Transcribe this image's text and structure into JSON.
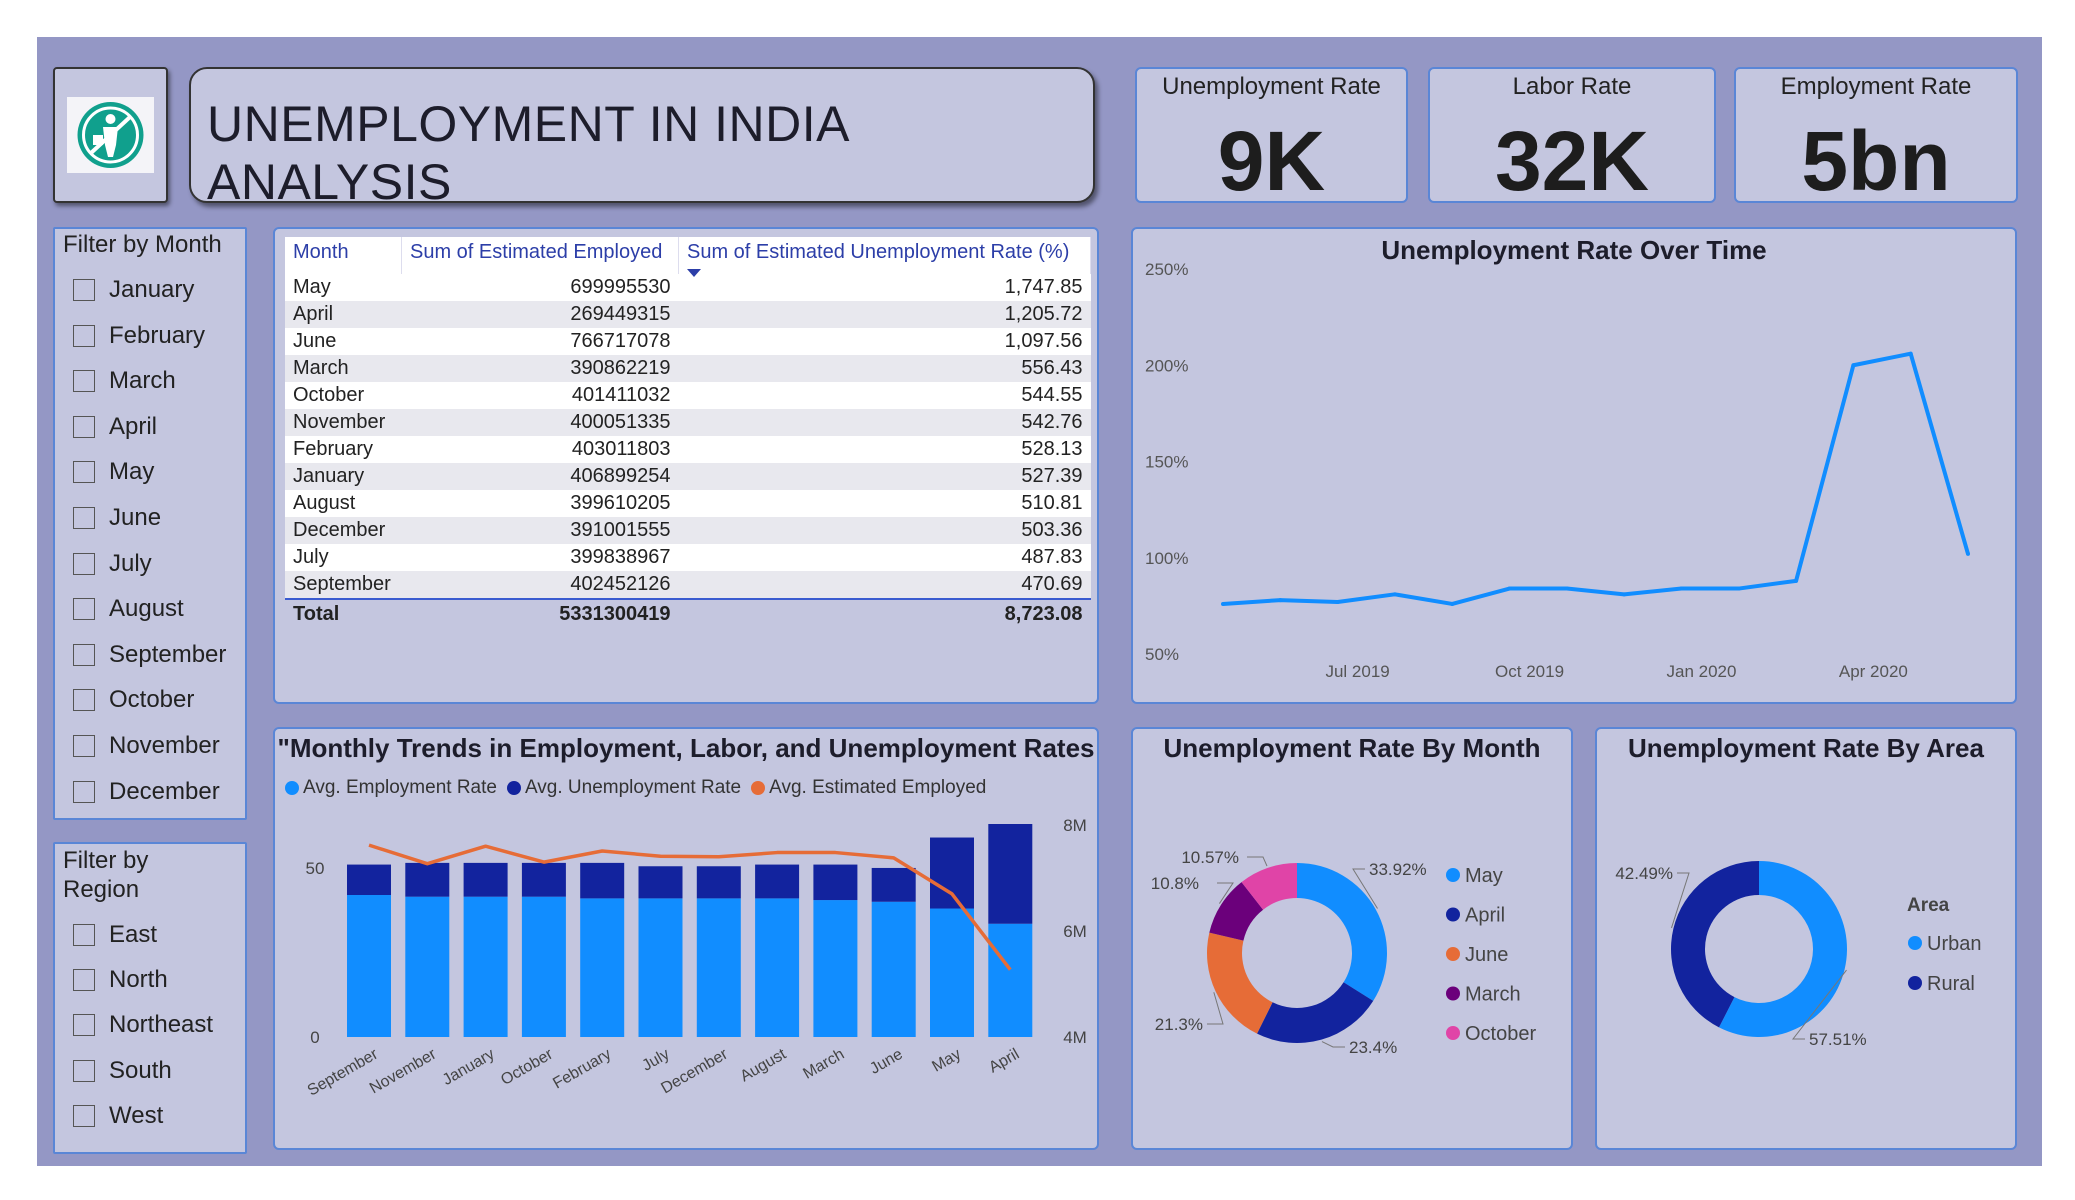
{
  "header": {
    "title": "UNEMPLOYMENT IN INDIA ANALYSIS",
    "logo_icon": "unemployment-person-icon"
  },
  "kpis": [
    {
      "label": "Unemployment Rate",
      "value": "9K"
    },
    {
      "label": "Labor Rate",
      "value": "32K"
    },
    {
      "label": "Employment Rate",
      "value": "5bn"
    }
  ],
  "filters": {
    "month_title": "Filter by Month",
    "months": [
      "January",
      "February",
      "March",
      "April",
      "May",
      "June",
      "July",
      "August",
      "September",
      "October",
      "November",
      "December"
    ],
    "region_title": "Filter by Region",
    "regions": [
      "East",
      "North",
      "Northeast",
      "South",
      "West"
    ]
  },
  "table": {
    "headers": [
      "Month",
      "Sum of Estimated Employed",
      "Sum of Estimated Unemployment Rate (%)"
    ],
    "rows": [
      [
        "May",
        "699995530",
        "1,747.85"
      ],
      [
        "April",
        "269449315",
        "1,205.72"
      ],
      [
        "June",
        "766717078",
        "1,097.56"
      ],
      [
        "March",
        "390862219",
        "556.43"
      ],
      [
        "October",
        "401411032",
        "544.55"
      ],
      [
        "November",
        "400051335",
        "542.76"
      ],
      [
        "February",
        "403011803",
        "528.13"
      ],
      [
        "January",
        "406899254",
        "527.39"
      ],
      [
        "August",
        "399610205",
        "510.81"
      ],
      [
        "December",
        "391001555",
        "503.36"
      ],
      [
        "July",
        "399838967",
        "487.83"
      ],
      [
        "September",
        "402452126",
        "470.69"
      ]
    ],
    "total": [
      "Total",
      "5331300419",
      "8,723.08"
    ]
  },
  "charts": {
    "line_title": "Unemployment Rate Over Time",
    "combo_title": "\"Monthly Trends in Employment, Labor, and Unemployment Rates",
    "month_donut_title": "Unemployment Rate By Month",
    "area_donut_title": "Unemployment Rate By Area",
    "area_legend_title": "Area"
  },
  "colors": {
    "blue": "#118dff",
    "dark_blue": "#12239e",
    "orange": "#e66c37",
    "purple": "#6b007b",
    "pink": "#e044a7",
    "background": "#9497c5",
    "panel": "#c4c6df"
  },
  "chart_data": [
    {
      "type": "line",
      "title": "Unemployment Rate Over Time",
      "x_ticks": [
        "Jul 2019",
        "Oct 2019",
        "Jan 2020",
        "Apr 2020"
      ],
      "y_ticks": [
        "50%",
        "100%",
        "150%",
        "200%",
        "250%"
      ],
      "ylim": [
        50,
        250
      ],
      "x": [
        "May 2019",
        "Jun 2019",
        "Jul 2019",
        "Aug 2019",
        "Sep 2019",
        "Oct 2019",
        "Nov 2019",
        "Dec 2019",
        "Jan 2020",
        "Feb 2020",
        "Mar 2020",
        "Apr 2020",
        "May 2020",
        "Jun 2020"
      ],
      "values": [
        76,
        78,
        77,
        81,
        76,
        84,
        84,
        81,
        84,
        84,
        88,
        200,
        206,
        102
      ],
      "color": "#118dff"
    },
    {
      "type": "bar",
      "title": "\"Monthly Trends in Employment, Labor, and Unemployment Rates",
      "categories": [
        "September",
        "November",
        "January",
        "October",
        "February",
        "July",
        "December",
        "August",
        "March",
        "June",
        "May",
        "April"
      ],
      "y_ticks_left": [
        "0",
        "50"
      ],
      "ylim_left": [
        0,
        63
      ],
      "y_ticks_right": [
        "4M",
        "6M",
        "8M"
      ],
      "ylim_right": [
        4000000,
        8000000
      ],
      "series": [
        {
          "name": "Avg. Employment Rate",
          "axis": "left",
          "stack": "a",
          "color": "#118dff",
          "values": [
            42,
            41.5,
            41.5,
            41.5,
            41,
            41,
            41,
            41,
            40.5,
            40,
            38,
            33.5
          ]
        },
        {
          "name": "Avg. Unemployment Rate",
          "axis": "left",
          "stack": "a",
          "color": "#12239e",
          "values": [
            9,
            10,
            10,
            10,
            10.5,
            9.5,
            9.5,
            10,
            10.5,
            10,
            21,
            29.5
          ]
        },
        {
          "name": "Avg. Estimated Employed",
          "axis": "right",
          "type": "line",
          "color": "#e66c37",
          "values": [
            7620000,
            7270000,
            7600000,
            7300000,
            7510000,
            7410000,
            7400000,
            7480000,
            7480000,
            7380000,
            6700000,
            5270000
          ]
        }
      ]
    },
    {
      "type": "pie",
      "title": "Unemployment Rate By Month",
      "labels": [
        "May",
        "April",
        "June",
        "March",
        "October"
      ],
      "values": [
        33.92,
        23.4,
        21.3,
        10.8,
        10.57
      ],
      "value_labels": [
        "33.92%",
        "23.4%",
        "21.3%",
        "10.8%",
        "10.57%"
      ],
      "colors": [
        "#118dff",
        "#12239e",
        "#e66c37",
        "#6b007b",
        "#e044a7"
      ]
    },
    {
      "type": "pie",
      "title": "Unemployment Rate By Area",
      "labels": [
        "Urban",
        "Rural"
      ],
      "values": [
        57.51,
        42.49
      ],
      "value_labels": [
        "57.51%",
        "42.49%"
      ],
      "colors": [
        "#118dff",
        "#12239e"
      ]
    }
  ]
}
